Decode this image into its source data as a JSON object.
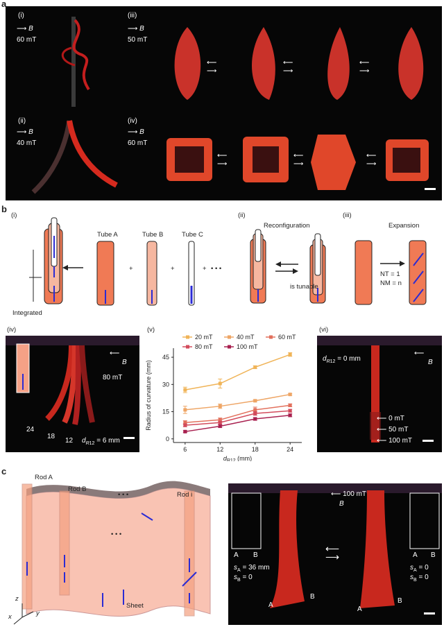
{
  "panel_a": {
    "letter": "a",
    "sub_i": {
      "label": "(i)",
      "field": "B",
      "strength": "60 mT"
    },
    "sub_ii": {
      "label": "(ii)",
      "field": "B",
      "strength": "40 mT"
    },
    "sub_iii": {
      "label": "(iii)",
      "field": "B",
      "strength": "50 mT"
    },
    "sub_iv": {
      "label": "(iv)",
      "field": "B",
      "strength": "60 mT"
    }
  },
  "panel_b": {
    "letter": "b",
    "sub_i": {
      "label": "(i)",
      "caption": "Integrated",
      "tubes": [
        "Tube A",
        "Tube B",
        "Tube C"
      ],
      "plus": "+",
      "ellipsis": "• • •"
    },
    "sub_ii": {
      "label": "(ii)",
      "title": "Reconfiguration",
      "note": "is tunable"
    },
    "sub_iii": {
      "label": "(iii)",
      "title": "Expansion",
      "nt": "NT = 1",
      "nm": "NM = n"
    },
    "sub_iv": {
      "label": "(iv)",
      "field": "B",
      "strength": "80 mT",
      "lengths": [
        "24",
        "18",
        "12"
      ],
      "d_eq": "= 6 mm"
    },
    "sub_v": {
      "label": "(v)"
    },
    "sub_vi": {
      "label": "(vi)",
      "field": "B",
      "d_eq": "= 0 mm",
      "fields": [
        "0 mT",
        "50 mT",
        "100 mT"
      ]
    }
  },
  "panel_c": {
    "letter": "c",
    "rods": [
      "Rod A",
      "Rod B",
      "Rod i"
    ],
    "sheet": "Sheet",
    "axes": [
      "z",
      "x",
      "y"
    ],
    "field": "B",
    "strength": "100 mT",
    "left_state": {
      "sA": "= 36 mm",
      "sB": "= 0"
    },
    "right_state": {
      "sA": "= 0",
      "sB": "= 0"
    },
    "ends": [
      "A",
      "B"
    ]
  },
  "chart_data": {
    "type": "line",
    "xlabel": "d_R12 (mm)",
    "ylabel": "Radius of curvature (mm)",
    "x": [
      6,
      12,
      18,
      24
    ],
    "xlim": [
      4,
      26
    ],
    "ylim": [
      -2,
      50
    ],
    "yticks": [
      0,
      15,
      30,
      45
    ],
    "legend_position": "top",
    "series": [
      {
        "name": "20 mT",
        "color": "#f0b458",
        "values": [
          27,
          30.5,
          39.5,
          46.5
        ],
        "errors": [
          1.5,
          2.5,
          0.8,
          1.0
        ]
      },
      {
        "name": "40 mT",
        "color": "#eea565",
        "values": [
          16,
          18,
          21,
          24.5
        ],
        "errors": [
          2.0,
          1.2,
          0.5,
          0.5
        ]
      },
      {
        "name": "60 mT",
        "color": "#e2705c",
        "values": [
          9,
          10.5,
          16,
          18.5
        ],
        "errors": [
          1.0,
          1.0,
          1.5,
          0.8
        ]
      },
      {
        "name": "80 mT",
        "color": "#d24b5c",
        "values": [
          7.5,
          9,
          14,
          15.5
        ],
        "errors": [
          0.8,
          0.8,
          1.0,
          0.8
        ]
      },
      {
        "name": "100 mT",
        "color": "#a8204f",
        "values": [
          4,
          7,
          11,
          13
        ],
        "errors": [
          0.5,
          0.8,
          0.8,
          0.8
        ]
      }
    ]
  }
}
